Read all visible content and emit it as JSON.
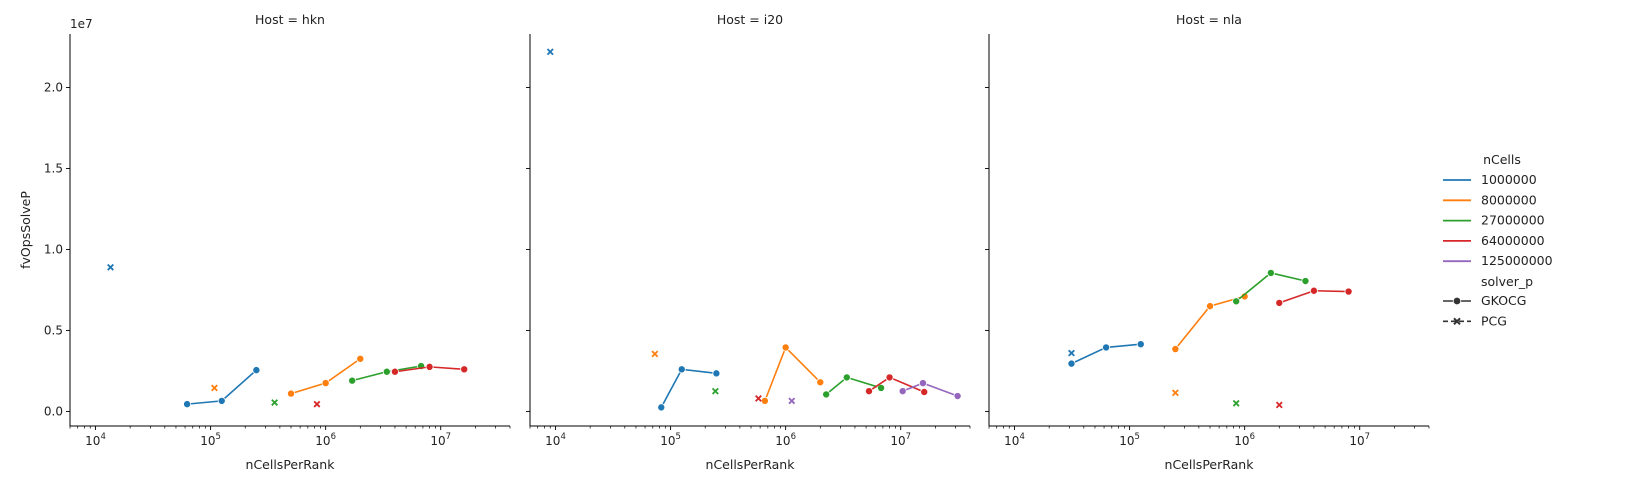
{
  "chart_data": {
    "type": "line",
    "layout": "facet-grid",
    "facet_variable": "Host",
    "facets": [
      {
        "title": "Host = hkn",
        "show_ylabel": true
      },
      {
        "title": "Host = i20",
        "show_ylabel": false
      },
      {
        "title": "Host = nla",
        "show_ylabel": false
      }
    ],
    "xlabel": "nCellsPerRank",
    "ylabel": "fvOpsSolveP",
    "y_offset_label": "1e7",
    "xscale": "log",
    "xlim": [
      6000,
      40000000
    ],
    "ylim": [
      -900000,
      23300000
    ],
    "x_ticks": [
      {
        "value": 10000,
        "mantissa": "10",
        "exponent": "4"
      },
      {
        "value": 100000,
        "mantissa": "10",
        "exponent": "5"
      },
      {
        "value": 1000000,
        "mantissa": "10",
        "exponent": "6"
      },
      {
        "value": 10000000,
        "mantissa": "10",
        "exponent": "7"
      }
    ],
    "y_ticks": [
      {
        "value": 0,
        "label": "0.0"
      },
      {
        "value": 5000000,
        "label": "0.5"
      },
      {
        "value": 10000000,
        "label": "1.0"
      },
      {
        "value": 15000000,
        "label": "1.5"
      },
      {
        "value": 20000000,
        "label": "2.0"
      }
    ],
    "legend": {
      "placement": "right",
      "hue_title": "nCells",
      "hue_entries": [
        {
          "label": "1000000",
          "color": "#1f77b4"
        },
        {
          "label": "8000000",
          "color": "#ff7f0e"
        },
        {
          "label": "27000000",
          "color": "#2ca02c"
        },
        {
          "label": "64000000",
          "color": "#d62728"
        },
        {
          "label": "125000000",
          "color": "#9467bd"
        }
      ],
      "style_title": "solver_p",
      "style_entries": [
        {
          "label": "GKOCG",
          "marker": "circle",
          "dash": "solid"
        },
        {
          "label": "PCG",
          "marker": "x",
          "dash": "dashed"
        }
      ]
    },
    "series": [
      {
        "facet": "Host = hkn",
        "nCells": "1000000",
        "solver_p": "GKOCG",
        "x": [
          62500,
          125000,
          250000
        ],
        "y": [
          450000,
          650000,
          2550000
        ]
      },
      {
        "facet": "Host = hkn",
        "nCells": "8000000",
        "solver_p": "GKOCG",
        "x": [
          500000,
          1000000,
          2000000
        ],
        "y": [
          1100000,
          1750000,
          3250000
        ]
      },
      {
        "facet": "Host = hkn",
        "nCells": "27000000",
        "solver_p": "GKOCG",
        "x": [
          1700000,
          3400000,
          6750000
        ],
        "y": [
          1900000,
          2450000,
          2800000
        ]
      },
      {
        "facet": "Host = hkn",
        "nCells": "64000000",
        "solver_p": "GKOCG",
        "x": [
          4000000,
          8000000,
          16000000
        ],
        "y": [
          2450000,
          2750000,
          2600000
        ]
      },
      {
        "facet": "Host = hkn",
        "nCells": "1000000",
        "solver_p": "PCG",
        "x": [
          13500
        ],
        "y": [
          8900000
        ]
      },
      {
        "facet": "Host = hkn",
        "nCells": "8000000",
        "solver_p": "PCG",
        "x": [
          108000
        ],
        "y": [
          1450000
        ]
      },
      {
        "facet": "Host = hkn",
        "nCells": "27000000",
        "solver_p": "PCG",
        "x": [
          360000
        ],
        "y": [
          550000
        ]
      },
      {
        "facet": "Host = hkn",
        "nCells": "64000000",
        "solver_p": "PCG",
        "x": [
          840000
        ],
        "y": [
          450000
        ]
      },
      {
        "facet": "Host = i20",
        "nCells": "1000000",
        "solver_p": "GKOCG",
        "x": [
          83000,
          125000,
          250000
        ],
        "y": [
          250000,
          2600000,
          2350000
        ]
      },
      {
        "facet": "Host = i20",
        "nCells": "8000000",
        "solver_p": "GKOCG",
        "x": [
          660000,
          1000000,
          2000000
        ],
        "y": [
          650000,
          3950000,
          1800000
        ]
      },
      {
        "facet": "Host = i20",
        "nCells": "27000000",
        "solver_p": "GKOCG",
        "x": [
          2250000,
          3400000,
          6750000
        ],
        "y": [
          1050000,
          2100000,
          1450000
        ]
      },
      {
        "facet": "Host = i20",
        "nCells": "64000000",
        "solver_p": "GKOCG",
        "x": [
          5300000,
          8000000,
          16000000
        ],
        "y": [
          1250000,
          2100000,
          1200000
        ]
      },
      {
        "facet": "Host = i20",
        "nCells": "125000000",
        "solver_p": "GKOCG",
        "x": [
          10400000,
          15600000,
          31200000
        ],
        "y": [
          1250000,
          1750000,
          950000
        ]
      },
      {
        "facet": "Host = i20",
        "nCells": "1000000",
        "solver_p": "PCG",
        "x": [
          9000
        ],
        "y": [
          22200000
        ]
      },
      {
        "facet": "Host = i20",
        "nCells": "8000000",
        "solver_p": "PCG",
        "x": [
          73000
        ],
        "y": [
          3550000
        ]
      },
      {
        "facet": "Host = i20",
        "nCells": "27000000",
        "solver_p": "PCG",
        "x": [
          245000
        ],
        "y": [
          1250000
        ]
      },
      {
        "facet": "Host = i20",
        "nCells": "64000000",
        "solver_p": "PCG",
        "x": [
          580000
        ],
        "y": [
          800000
        ]
      },
      {
        "facet": "Host = i20",
        "nCells": "125000000",
        "solver_p": "PCG",
        "x": [
          1130000
        ],
        "y": [
          650000
        ]
      },
      {
        "facet": "Host = nla",
        "nCells": "1000000",
        "solver_p": "GKOCG",
        "x": [
          31250,
          62500,
          125000
        ],
        "y": [
          2950000,
          3950000,
          4150000
        ]
      },
      {
        "facet": "Host = nla",
        "nCells": "8000000",
        "solver_p": "GKOCG",
        "x": [
          250000,
          500000,
          1000000
        ],
        "y": [
          3850000,
          6500000,
          7100000
        ]
      },
      {
        "facet": "Host = nla",
        "nCells": "27000000",
        "solver_p": "GKOCG",
        "x": [
          844000,
          1690000,
          3375000
        ],
        "y": [
          6800000,
          8550000,
          8050000
        ]
      },
      {
        "facet": "Host = nla",
        "nCells": "64000000",
        "solver_p": "GKOCG",
        "x": [
          2000000,
          4000000,
          8000000
        ],
        "y": [
          6700000,
          7450000,
          7400000
        ]
      },
      {
        "facet": "Host = nla",
        "nCells": "1000000",
        "solver_p": "PCG",
        "x": [
          31250
        ],
        "y": [
          3600000
        ]
      },
      {
        "facet": "Host = nla",
        "nCells": "8000000",
        "solver_p": "PCG",
        "x": [
          250000
        ],
        "y": [
          1150000
        ]
      },
      {
        "facet": "Host = nla",
        "nCells": "27000000",
        "solver_p": "PCG",
        "x": [
          844000
        ],
        "y": [
          500000
        ]
      },
      {
        "facet": "Host = nla",
        "nCells": "64000000",
        "solver_p": "PCG",
        "x": [
          2000000
        ],
        "y": [
          400000
        ]
      }
    ]
  }
}
